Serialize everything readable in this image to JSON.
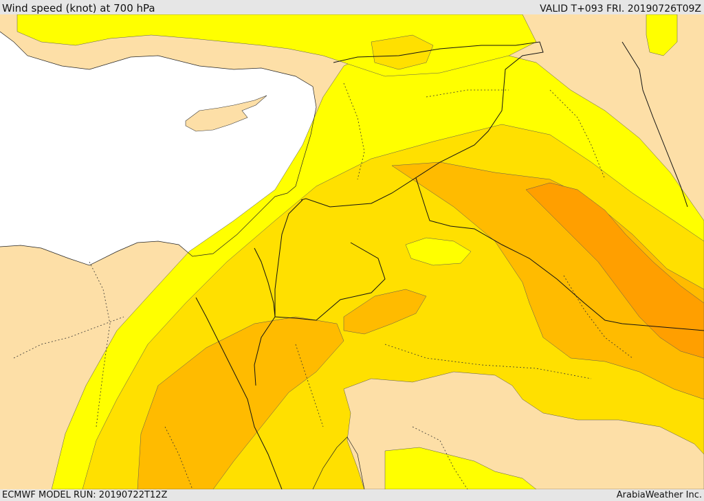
{
  "header": {
    "title": "Wind speed (knot) at 700 hPa",
    "valid": "VALID T+093 FRI. 20190726T09Z"
  },
  "footer": {
    "model_run": "ECMWF MODEL RUN: 20190722T12Z",
    "credit": "ArabiaWeather Inc."
  },
  "colors": {
    "sea": "#ffffff",
    "land": "#fddfa7",
    "band_1": "#ffff00",
    "band_2": "#ffe000",
    "band_3": "#ffbb00",
    "band_4": "#ff9f00",
    "border": "#111111"
  }
}
